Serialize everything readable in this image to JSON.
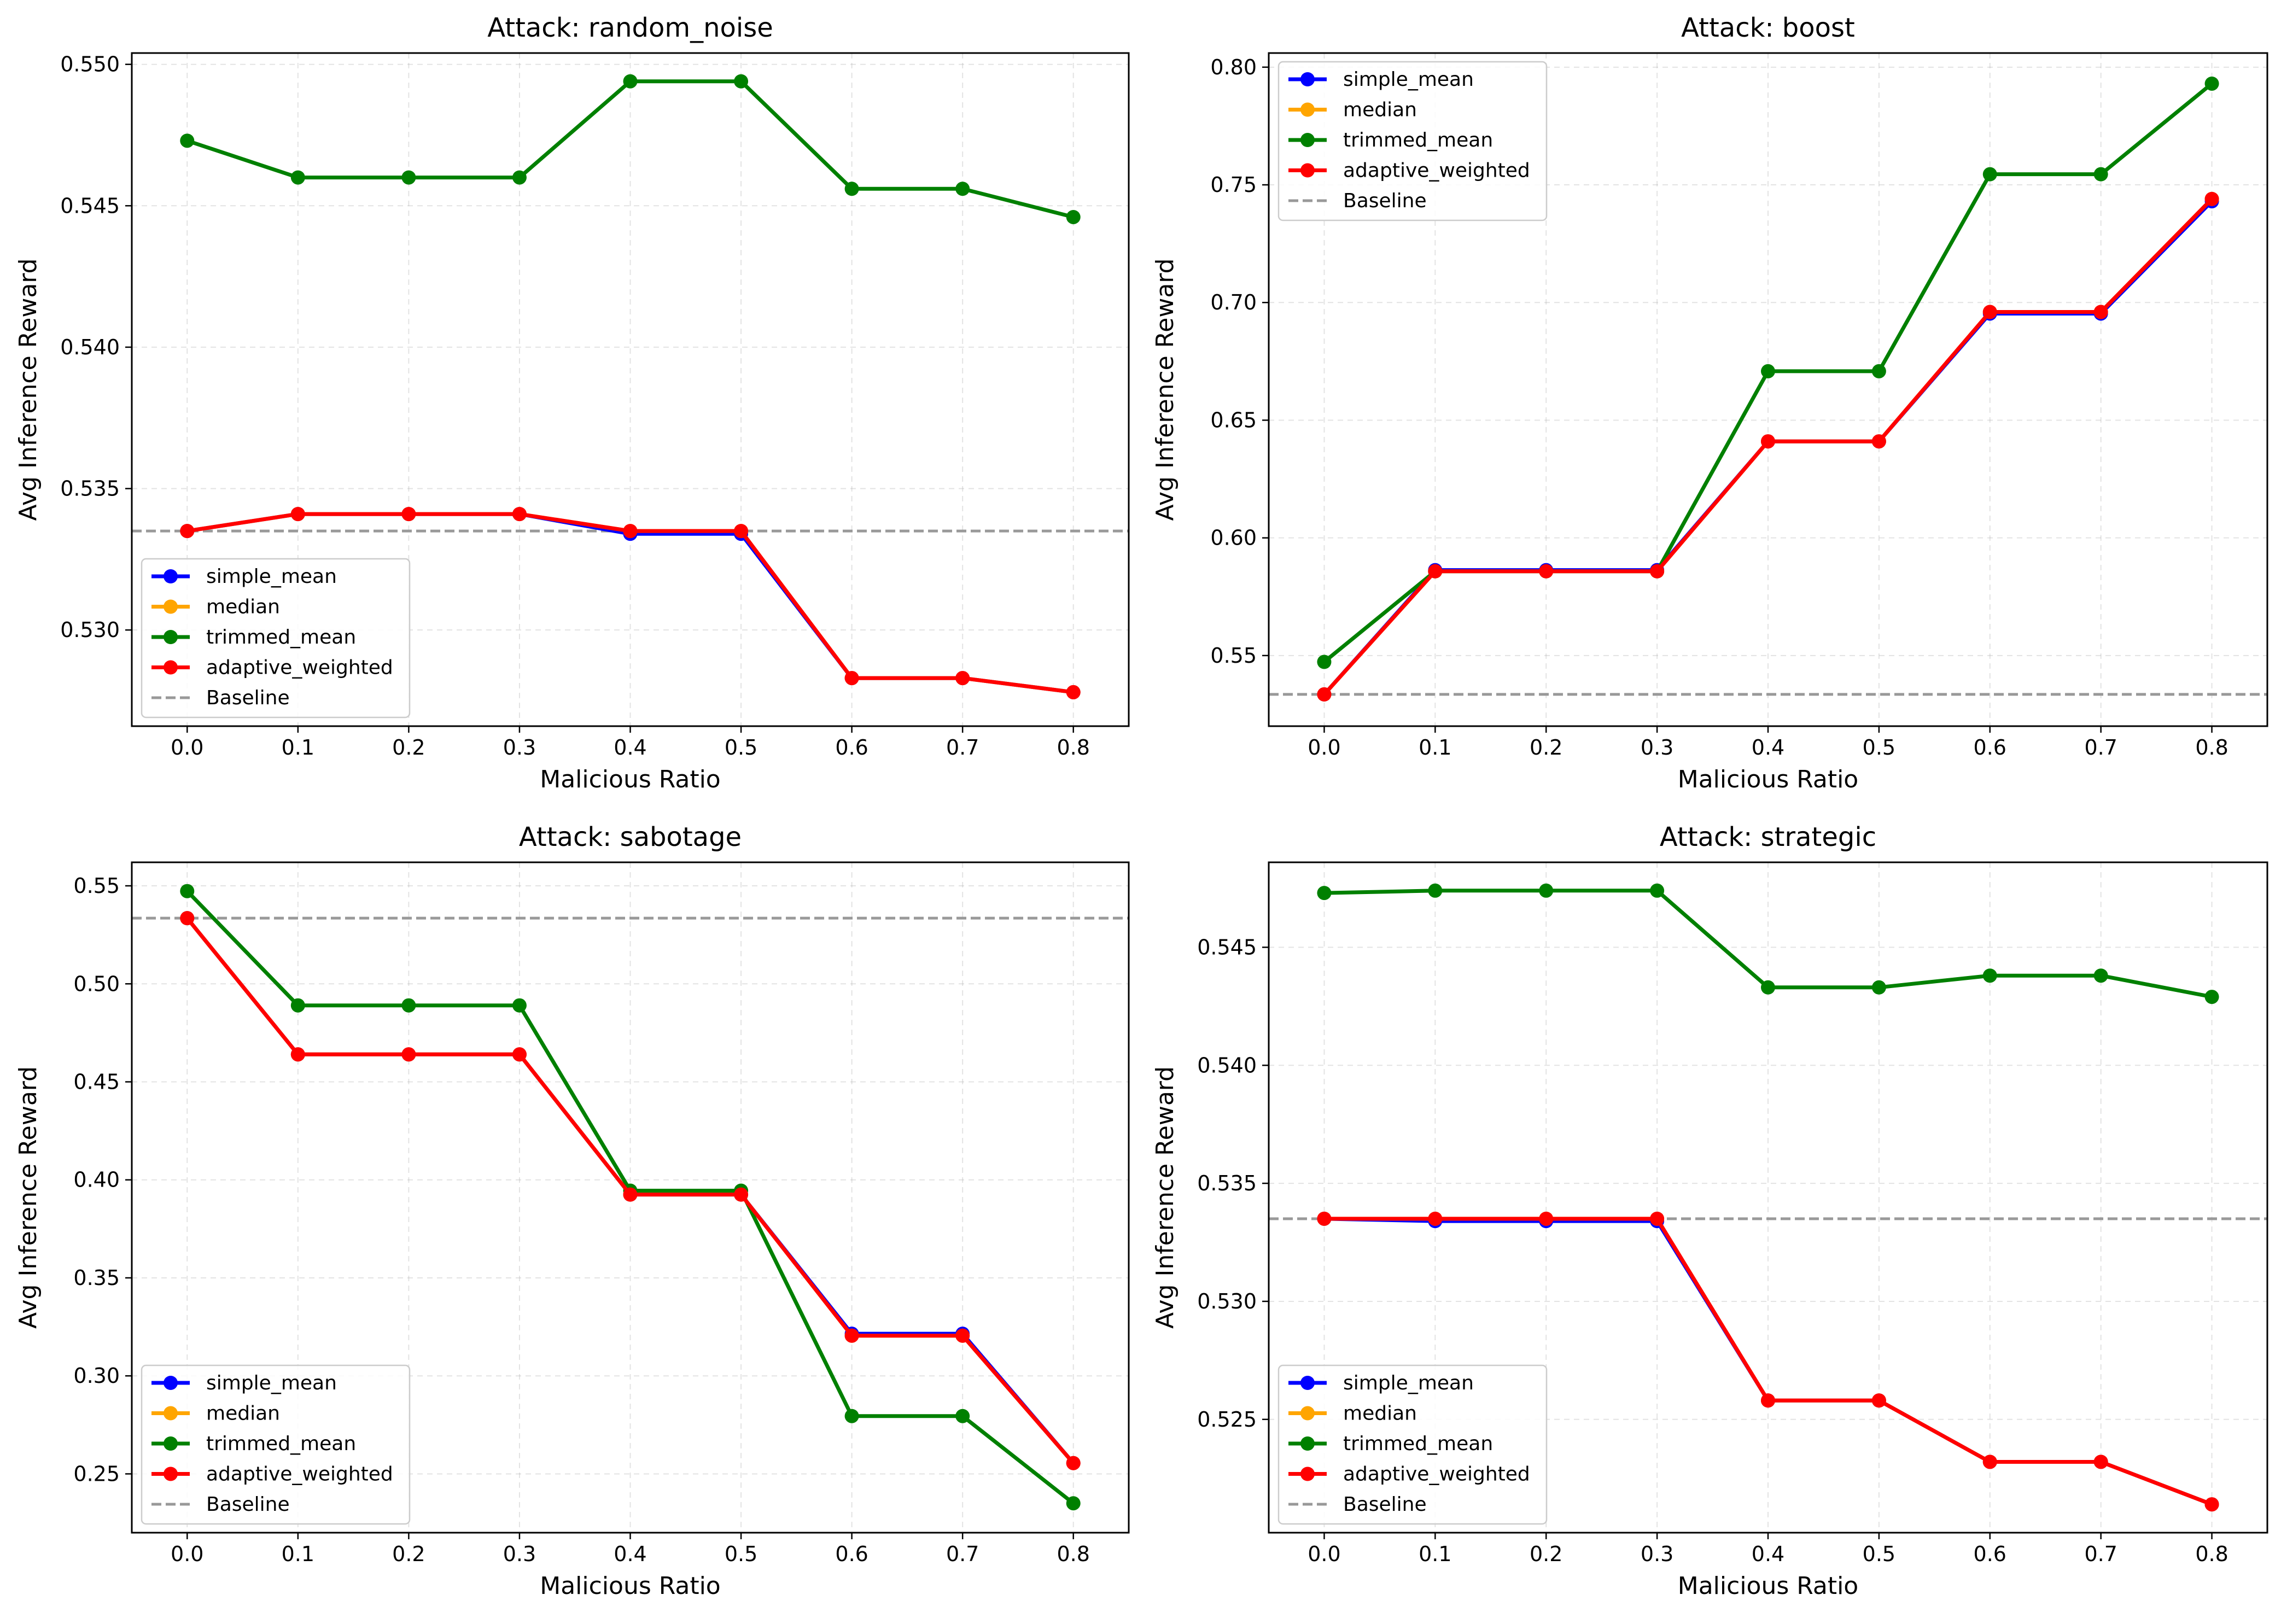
{
  "chart_data": [
    {
      "type": "line",
      "title": "Attack: random_noise",
      "xlabel": "Malicious Ratio",
      "ylabel": "Avg Inference Reward",
      "x": [
        0.0,
        0.1,
        0.2,
        0.3,
        0.4,
        0.5,
        0.6,
        0.7,
        0.8
      ],
      "x_ticks": [
        "0.0",
        "0.1",
        "0.2",
        "0.3",
        "0.4",
        "0.5",
        "0.6",
        "0.7",
        "0.8"
      ],
      "xlim": [
        -0.05,
        0.85
      ],
      "ylim": [
        0.5266,
        0.5504
      ],
      "y_ticks": [
        "0.530",
        "0.535",
        "0.540",
        "0.545",
        "0.550"
      ],
      "y_tick_values": [
        0.53,
        0.535,
        0.54,
        0.545,
        0.55
      ],
      "baseline": 0.5335,
      "legend_position": "lower-left",
      "series": [
        {
          "name": "simple_mean",
          "color": "#0000ff",
          "values": [
            0.5335,
            0.5341,
            0.5341,
            0.5341,
            0.5334,
            0.5334,
            0.5283,
            0.5283,
            0.5278
          ]
        },
        {
          "name": "median",
          "color": "#ffa500",
          "values": [
            0.5335,
            0.5341,
            0.5341,
            0.5341,
            0.5335,
            0.5335,
            0.5283,
            0.5283,
            0.5278
          ]
        },
        {
          "name": "trimmed_mean",
          "color": "#008000",
          "values": [
            0.5473,
            0.546,
            0.546,
            0.546,
            0.5494,
            0.5494,
            0.5456,
            0.5456,
            0.5446
          ]
        },
        {
          "name": "adaptive_weighted",
          "color": "#ff0000",
          "values": [
            0.5335,
            0.5341,
            0.5341,
            0.5341,
            0.5335,
            0.5335,
            0.5283,
            0.5283,
            0.5278
          ]
        }
      ],
      "baseline_label": "Baseline"
    },
    {
      "type": "line",
      "title": "Attack: boost",
      "xlabel": "Malicious Ratio",
      "ylabel": "Avg Inference Reward",
      "x": [
        0.0,
        0.1,
        0.2,
        0.3,
        0.4,
        0.5,
        0.6,
        0.7,
        0.8
      ],
      "x_ticks": [
        "0.0",
        "0.1",
        "0.2",
        "0.3",
        "0.4",
        "0.5",
        "0.6",
        "0.7",
        "0.8"
      ],
      "xlim": [
        -0.05,
        0.85
      ],
      "ylim": [
        0.52,
        0.806
      ],
      "y_ticks": [
        "0.55",
        "0.60",
        "0.65",
        "0.70",
        "0.75",
        "0.80"
      ],
      "y_tick_values": [
        0.55,
        0.6,
        0.65,
        0.7,
        0.75,
        0.8
      ],
      "baseline": 0.5335,
      "legend_position": "upper-left",
      "series": [
        {
          "name": "simple_mean",
          "color": "#0000ff",
          "values": [
            0.5335,
            0.5863,
            0.5863,
            0.5863,
            0.641,
            0.641,
            0.6953,
            0.6953,
            0.743
          ]
        },
        {
          "name": "median",
          "color": "#ffa500",
          "values": [
            0.5335,
            0.5858,
            0.5858,
            0.5858,
            0.641,
            0.641,
            0.696,
            0.696,
            0.744
          ]
        },
        {
          "name": "trimmed_mean",
          "color": "#008000",
          "values": [
            0.5473,
            0.5858,
            0.5858,
            0.5858,
            0.6708,
            0.6708,
            0.7545,
            0.7545,
            0.793
          ]
        },
        {
          "name": "adaptive_weighted",
          "color": "#ff0000",
          "values": [
            0.5335,
            0.5858,
            0.5858,
            0.5858,
            0.641,
            0.641,
            0.696,
            0.696,
            0.744
          ]
        }
      ],
      "baseline_label": "Baseline"
    },
    {
      "type": "line",
      "title": "Attack: sabotage",
      "xlabel": "Malicious Ratio",
      "ylabel": "Avg Inference Reward",
      "x": [
        0.0,
        0.1,
        0.2,
        0.3,
        0.4,
        0.5,
        0.6,
        0.7,
        0.8
      ],
      "x_ticks": [
        "0.0",
        "0.1",
        "0.2",
        "0.3",
        "0.4",
        "0.5",
        "0.6",
        "0.7",
        "0.8"
      ],
      "xlim": [
        -0.05,
        0.85
      ],
      "ylim": [
        0.22,
        0.562
      ],
      "y_ticks": [
        "0.25",
        "0.30",
        "0.35",
        "0.40",
        "0.45",
        "0.50",
        "0.55"
      ],
      "y_tick_values": [
        0.25,
        0.3,
        0.35,
        0.4,
        0.45,
        0.5,
        0.55
      ],
      "baseline": 0.5335,
      "legend_position": "lower-left",
      "series": [
        {
          "name": "simple_mean",
          "color": "#0000ff",
          "values": [
            0.5335,
            0.464,
            0.464,
            0.464,
            0.3925,
            0.3925,
            0.3215,
            0.3215,
            0.2555
          ]
        },
        {
          "name": "median",
          "color": "#ffa500",
          "values": [
            0.5335,
            0.464,
            0.464,
            0.464,
            0.3925,
            0.3925,
            0.3205,
            0.3205,
            0.2555
          ]
        },
        {
          "name": "trimmed_mean",
          "color": "#008000",
          "values": [
            0.5473,
            0.489,
            0.489,
            0.489,
            0.3945,
            0.3945,
            0.2795,
            0.2795,
            0.235
          ]
        },
        {
          "name": "adaptive_weighted",
          "color": "#ff0000",
          "values": [
            0.5335,
            0.464,
            0.464,
            0.464,
            0.3925,
            0.3925,
            0.3205,
            0.3205,
            0.2555
          ]
        }
      ],
      "baseline_label": "Baseline"
    },
    {
      "type": "line",
      "title": "Attack: strategic",
      "xlabel": "Malicious Ratio",
      "ylabel": "Avg Inference Reward",
      "x": [
        0.0,
        0.1,
        0.2,
        0.3,
        0.4,
        0.5,
        0.6,
        0.7,
        0.8
      ],
      "x_ticks": [
        "0.0",
        "0.1",
        "0.2",
        "0.3",
        "0.4",
        "0.5",
        "0.6",
        "0.7",
        "0.8"
      ],
      "xlim": [
        -0.05,
        0.85
      ],
      "ylim": [
        0.5202,
        0.5486
      ],
      "y_ticks": [
        "0.525",
        "0.530",
        "0.535",
        "0.540",
        "0.545"
      ],
      "y_tick_values": [
        0.525,
        0.53,
        0.535,
        0.54,
        0.545
      ],
      "baseline": 0.5335,
      "legend_position": "lower-left",
      "series": [
        {
          "name": "simple_mean",
          "color": "#0000ff",
          "values": [
            0.5335,
            0.5334,
            0.5334,
            0.5334,
            0.5258,
            0.5258,
            0.5232,
            0.5232,
            0.5214
          ]
        },
        {
          "name": "median",
          "color": "#ffa500",
          "values": [
            0.5335,
            0.5335,
            0.5335,
            0.5335,
            0.5258,
            0.5258,
            0.5232,
            0.5232,
            0.5214
          ]
        },
        {
          "name": "trimmed_mean",
          "color": "#008000",
          "values": [
            0.5473,
            0.5474,
            0.5474,
            0.5474,
            0.5433,
            0.5433,
            0.5438,
            0.5438,
            0.5429
          ]
        },
        {
          "name": "adaptive_weighted",
          "color": "#ff0000",
          "values": [
            0.5335,
            0.5335,
            0.5335,
            0.5335,
            0.5258,
            0.5258,
            0.5232,
            0.5232,
            0.5214
          ]
        }
      ],
      "baseline_label": "Baseline"
    }
  ]
}
